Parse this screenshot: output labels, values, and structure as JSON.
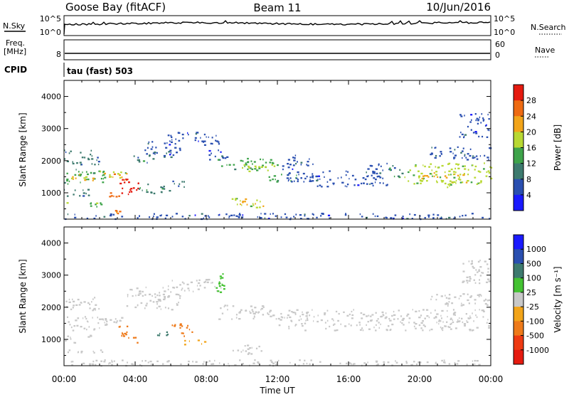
{
  "header": {
    "station": "Goose Bay (fitACF)",
    "beam": "Beam 11",
    "date": "10/Jun/2016"
  },
  "top_panels": {
    "nsky_label": "N.Sky",
    "nsky_tick_top": "10^5",
    "nsky_tick_bottom": "10^0",
    "nsearch_label": "N.Search",
    "nsearch_tick_top": "10^5",
    "nsearch_tick_bottom": "10^0",
    "freq_label": "Freq.",
    "freq_unit": "[MHz]",
    "freq_tick": "8",
    "nave_label": "Nave",
    "nave_tick_top": "60",
    "nave_tick_bottom": "0",
    "cpid_label": "CPID",
    "cpid_value": "tau (fast) 503"
  },
  "chart_data": [
    {
      "type": "heatmap",
      "name": "power",
      "ylabel": "Slant Range [km]",
      "xlim": [
        0,
        24
      ],
      "ylim": [
        180,
        4500
      ],
      "yticks": [
        "1000",
        "2000",
        "3000",
        "4000"
      ],
      "ytick_values": [
        1000,
        2000,
        3000,
        4000
      ],
      "colorbar": {
        "label": "Power [dB]",
        "ticks": [
          "4",
          "8",
          "12",
          "16",
          "20",
          "24",
          "28"
        ],
        "colors": [
          "#1a1aff",
          "#2a4fb0",
          "#3d7a6e",
          "#3ea34a",
          "#b8d832",
          "#f2a41a",
          "#ee6a12",
          "#e51a0f"
        ]
      },
      "regions": [
        {
          "t0": 0.0,
          "t1": 2.4,
          "r0": 1300,
          "r1": 1750,
          "value": 14
        },
        {
          "t0": 0.1,
          "t1": 1.6,
          "r0": 1400,
          "r1": 1600,
          "value": 20
        },
        {
          "t0": 0.0,
          "t1": 2.0,
          "r0": 1900,
          "r1": 2350,
          "value": 8
        },
        {
          "t0": 0.0,
          "t1": 1.5,
          "r0": 900,
          "r1": 1150,
          "value": 10
        },
        {
          "t0": 0.0,
          "t1": 2.5,
          "r0": 580,
          "r1": 720,
          "value": 14
        },
        {
          "t0": 1.8,
          "t1": 3.5,
          "r0": 1480,
          "r1": 1700,
          "value": 18
        },
        {
          "t0": 2.2,
          "t1": 3.5,
          "r0": 1500,
          "r1": 1650,
          "value": 22
        },
        {
          "t0": 2.4,
          "t1": 3.2,
          "r0": 880,
          "r1": 1050,
          "value": 27
        },
        {
          "t0": 3.0,
          "t1": 4.2,
          "r0": 900,
          "r1": 1500,
          "value": 28
        },
        {
          "t0": 2.7,
          "t1": 3.1,
          "r0": 380,
          "r1": 470,
          "value": 26
        },
        {
          "t0": 3.5,
          "t1": 5.0,
          "r0": 1950,
          "r1": 2200,
          "value": 10
        },
        {
          "t0": 4.5,
          "t1": 6.5,
          "r0": 2100,
          "r1": 2650,
          "value": 6
        },
        {
          "t0": 5.8,
          "t1": 8.8,
          "r0": 2500,
          "r1": 2900,
          "value": 6
        },
        {
          "t0": 8.0,
          "t1": 9.2,
          "r0": 2000,
          "r1": 2400,
          "value": 5
        },
        {
          "t0": 4.2,
          "t1": 6.0,
          "r0": 1000,
          "r1": 1300,
          "value": 9
        },
        {
          "t0": 5.5,
          "t1": 6.8,
          "r0": 1200,
          "r1": 1400,
          "value": 10
        },
        {
          "t0": 8.6,
          "t1": 12.0,
          "r0": 1750,
          "r1": 2100,
          "value": 13
        },
        {
          "t0": 10.0,
          "t1": 11.8,
          "r0": 1650,
          "r1": 1900,
          "value": 18
        },
        {
          "t0": 11.5,
          "t1": 13.2,
          "r0": 1350,
          "r1": 1600,
          "value": 12
        },
        {
          "t0": 9.4,
          "t1": 11.2,
          "r0": 550,
          "r1": 850,
          "value": 17
        },
        {
          "t0": 9.8,
          "t1": 10.8,
          "r0": 650,
          "r1": 780,
          "value": 21
        },
        {
          "t0": 12.2,
          "t1": 14.0,
          "r0": 1350,
          "r1": 2200,
          "value": 6
        },
        {
          "t0": 13.8,
          "t1": 18.2,
          "r0": 1200,
          "r1": 1700,
          "value": 5
        },
        {
          "t0": 16.8,
          "t1": 18.6,
          "r0": 1650,
          "r1": 1950,
          "value": 7
        },
        {
          "t0": 18.2,
          "t1": 19.2,
          "r0": 1500,
          "r1": 1800,
          "value": 13
        },
        {
          "t0": 19.2,
          "t1": 24.0,
          "r0": 1300,
          "r1": 1950,
          "value": 16
        },
        {
          "t0": 20.0,
          "t1": 22.5,
          "r0": 1450,
          "r1": 1650,
          "value": 22
        },
        {
          "t0": 21.5,
          "t1": 23.4,
          "r0": 1180,
          "r1": 1420,
          "value": 19
        },
        {
          "t0": 20.5,
          "t1": 24.0,
          "r0": 2050,
          "r1": 2450,
          "value": 7
        },
        {
          "t0": 22.2,
          "t1": 23.9,
          "r0": 2750,
          "r1": 3500,
          "value": 5
        },
        {
          "t0": 0.0,
          "t1": 24.0,
          "r0": 200,
          "r1": 380,
          "value": 7
        }
      ]
    },
    {
      "type": "heatmap",
      "name": "velocity",
      "ylabel": "Slant Range [km]",
      "xlabel": "Time UT",
      "xlim": [
        0,
        24
      ],
      "ylim": [
        180,
        4500
      ],
      "xticks": [
        "00:00",
        "04:00",
        "08:00",
        "12:00",
        "16:00",
        "20:00",
        "00:00"
      ],
      "xtick_values": [
        0,
        4,
        8,
        12,
        16,
        20,
        24
      ],
      "yticks": [
        "1000",
        "2000",
        "3000",
        "4000"
      ],
      "ytick_values": [
        1000,
        2000,
        3000,
        4000
      ],
      "colorbar": {
        "label": "Velocity [m s⁻¹]",
        "ticks": [
          "1000",
          "500",
          "100",
          "25",
          "-25",
          "-100",
          "-500",
          "-1000"
        ],
        "colors": [
          "#1a1aff",
          "#2a4fb0",
          "#3d7a6e",
          "#44c232",
          "#c8c8c8",
          "#f2a41a",
          "#ee7a1a",
          "#ee3a12",
          "#e51a0f"
        ]
      },
      "regions": [
        {
          "t0": 0.0,
          "t1": 2.4,
          "r0": 1300,
          "r1": 1750,
          "value": 0
        },
        {
          "t0": 0.0,
          "t1": 2.0,
          "r0": 1900,
          "r1": 2350,
          "value": 0
        },
        {
          "t0": 0.0,
          "t1": 1.5,
          "r0": 900,
          "r1": 1150,
          "value": 0
        },
        {
          "t0": 0.0,
          "t1": 2.5,
          "r0": 580,
          "r1": 720,
          "value": 0
        },
        {
          "t0": 1.8,
          "t1": 3.5,
          "r0": 1480,
          "r1": 1700,
          "value": 0
        },
        {
          "t0": 2.8,
          "t1": 3.6,
          "r0": 1150,
          "r1": 1450,
          "value": -150
        },
        {
          "t0": 3.2,
          "t1": 4.1,
          "r0": 900,
          "r1": 1200,
          "value": -200
        },
        {
          "t0": 3.5,
          "t1": 6.5,
          "r0": 1950,
          "r1": 2650,
          "value": 0
        },
        {
          "t0": 5.8,
          "t1": 8.8,
          "r0": 2500,
          "r1": 2900,
          "value": 0
        },
        {
          "t0": 5.2,
          "t1": 6.2,
          "r0": 1050,
          "r1": 1250,
          "value": 150
        },
        {
          "t0": 6.0,
          "t1": 7.2,
          "r0": 1100,
          "r1": 1500,
          "value": -200
        },
        {
          "t0": 6.5,
          "t1": 8.0,
          "r0": 850,
          "r1": 1000,
          "value": -60
        },
        {
          "t0": 8.3,
          "t1": 9.0,
          "r0": 2400,
          "r1": 3100,
          "value": 60
        },
        {
          "t0": 8.6,
          "t1": 12.0,
          "r0": 1650,
          "r1": 2100,
          "value": 0
        },
        {
          "t0": 9.4,
          "t1": 11.2,
          "r0": 550,
          "r1": 850,
          "value": 0
        },
        {
          "t0": 12.0,
          "t1": 24.0,
          "r0": 1300,
          "r1": 1950,
          "value": 0
        },
        {
          "t0": 20.5,
          "t1": 24.0,
          "r0": 2050,
          "r1": 2450,
          "value": 0
        },
        {
          "t0": 22.2,
          "t1": 23.9,
          "r0": 2750,
          "r1": 3500,
          "value": 0
        },
        {
          "t0": 0.0,
          "t1": 24.0,
          "r0": 200,
          "r1": 380,
          "value": 0
        }
      ]
    }
  ]
}
